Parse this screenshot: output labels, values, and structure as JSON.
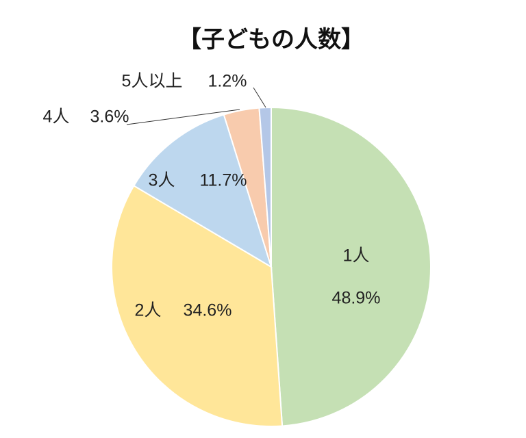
{
  "chart_data": {
    "type": "pie",
    "title": "【子どもの人数】",
    "categories": [
      "1人",
      "2人",
      "3人",
      "4人",
      "5人以上"
    ],
    "values": [
      48.9,
      34.6,
      11.7,
      3.6,
      1.2
    ],
    "value_labels": [
      "48.9%",
      "34.6%",
      "11.7%",
      "3.6%",
      "1.2%"
    ],
    "colors": [
      "#c5e0b4",
      "#ffe699",
      "#bdd7ee",
      "#f8cbad",
      "#b4c7e7"
    ]
  }
}
